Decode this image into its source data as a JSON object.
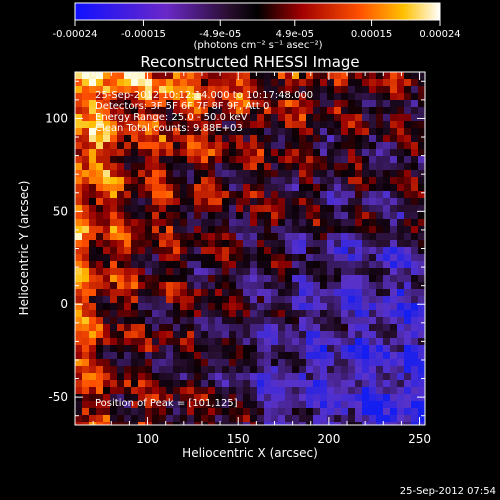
{
  "chart_data": {
    "type": "heatmap",
    "title": "Reconstructed RHESSI Image",
    "xlabel": "Heliocentric X (arcsec)",
    "ylabel": "Heliocentric Y (arcsec)",
    "xlim": [
      60,
      253
    ],
    "ylim": [
      -65,
      125
    ],
    "x_ticks": [
      100,
      150,
      200,
      250
    ],
    "y_ticks": [
      -50,
      0,
      50,
      100
    ],
    "colorbar": {
      "ticks": [
        "-0.00024",
        "-0.00015",
        "-4.9e-05",
        "4.9e-05",
        "0.00015",
        "0.00024"
      ],
      "tick_values": [
        -0.00024,
        -0.00015,
        -4.9e-05,
        4.9e-05,
        0.00015,
        0.00024
      ],
      "range": [
        -0.00024,
        0.00024
      ],
      "unit_label": "(photons cm⁻² s⁻¹ asec⁻²)",
      "colormap": [
        "#0000ff",
        "#5a1a9a",
        "#1a0a1a",
        "#8c0000",
        "#ff3300",
        "#ffaa00",
        "#ffffff"
      ]
    },
    "peak_position": [
      101,
      125
    ],
    "annotations": [
      "25-Sep-2012 10:12:14.000 to 10:17:48.000",
      "Detectors: 3F 5F 6F 7F 8F 9F, Att 0",
      "Energy Range: 25.0 - 50.0 keV",
      "Clean    Total counts: 9.88E+03"
    ],
    "peak_label": "Position of Peak = [101,125]"
  },
  "footer_timestamp": "25-Sep-2012 07:54"
}
